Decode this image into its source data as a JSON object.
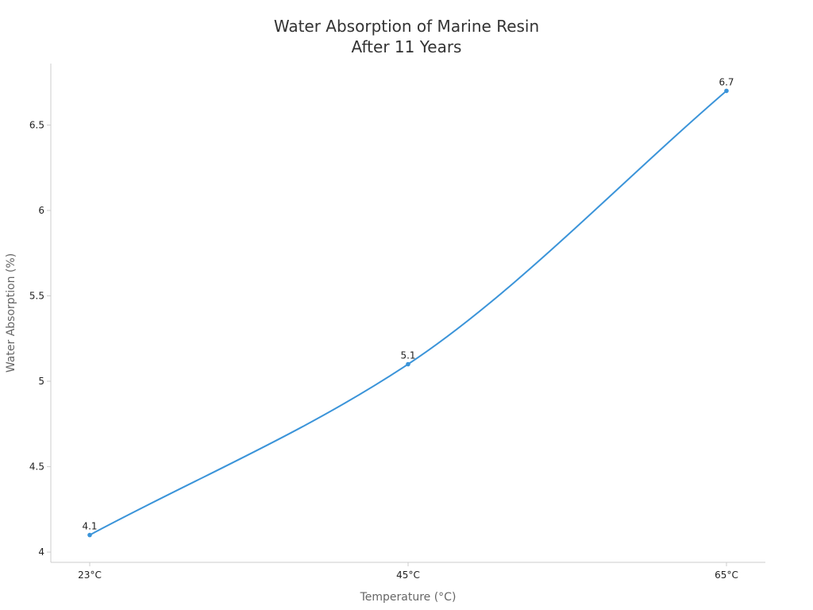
{
  "chart_data": {
    "type": "line",
    "title_lines": [
      "Water Absorption of Marine Resin",
      "After 11 Years"
    ],
    "xlabel": "Temperature (°C)",
    "ylabel": "Water Absorption (%)",
    "categories": [
      "23°C",
      "45°C",
      "65°C"
    ],
    "series": [
      {
        "values": [
          4.1,
          5.1,
          6.7
        ],
        "color": "#3b94d9"
      }
    ],
    "data_labels": [
      "4.1",
      "5.1",
      "6.7"
    ],
    "yticks": [
      4,
      4.5,
      5,
      5.5,
      6,
      6.5
    ],
    "ytick_labels": [
      "4",
      "4.5",
      "5",
      "5.5",
      "6",
      "6.5"
    ],
    "ylim": [
      3.94,
      6.86
    ],
    "grid": false,
    "smooth": true
  }
}
